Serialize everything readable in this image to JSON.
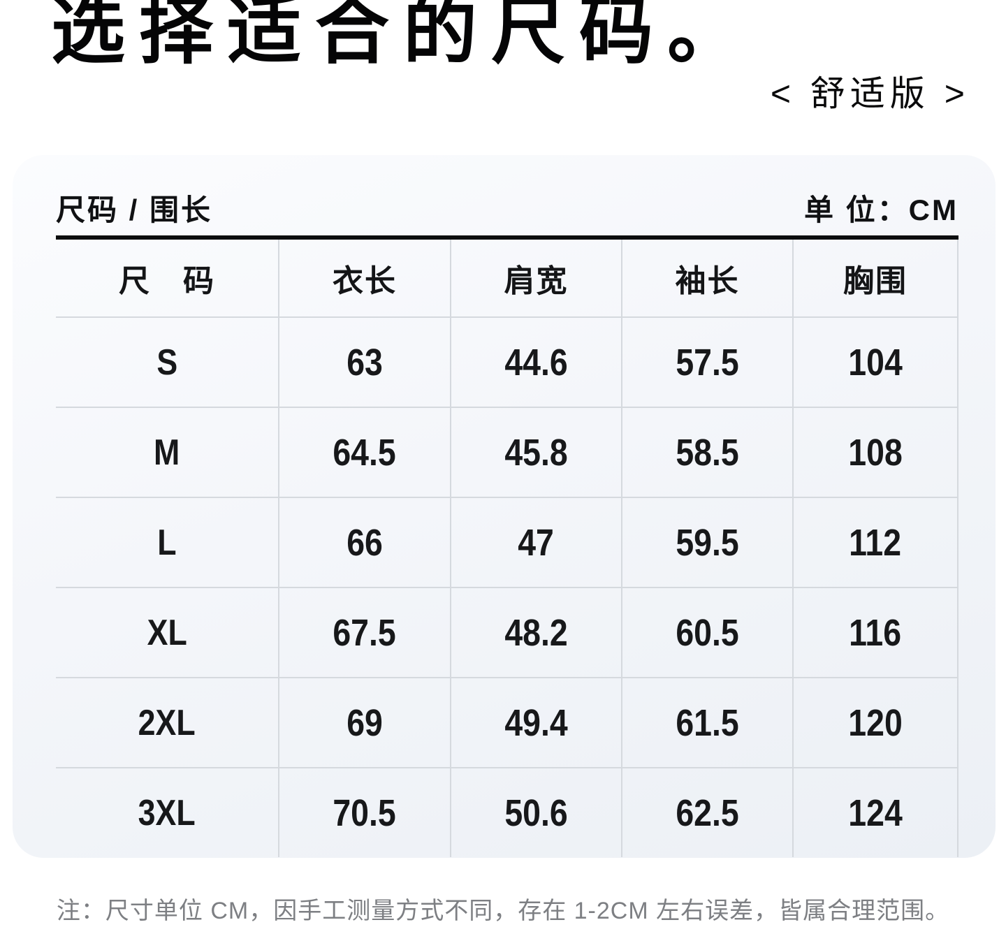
{
  "header": {
    "title": "选择适合的尺码。",
    "version_tag": "< 舒适版 >"
  },
  "card": {
    "subtitle": "尺码 / 围长",
    "unit_label": "单 位：CM"
  },
  "chart_data": {
    "type": "table",
    "title": "选择适合的尺码。",
    "subtitle": "尺码 / 围长",
    "unit": "CM",
    "columns": [
      "尺　码",
      "衣长",
      "肩宽",
      "袖长",
      "胸围"
    ],
    "rows": [
      {
        "size": "S",
        "cells": [
          "63",
          "44.6",
          "57.5",
          "104"
        ]
      },
      {
        "size": "M",
        "cells": [
          "64.5",
          "45.8",
          "58.5",
          "108"
        ]
      },
      {
        "size": "L",
        "cells": [
          "66",
          "47",
          "59.5",
          "112"
        ]
      },
      {
        "size": "XL",
        "cells": [
          "67.5",
          "48.2",
          "60.5",
          "116"
        ]
      },
      {
        "size": "2XL",
        "cells": [
          "69",
          "49.4",
          "61.5",
          "120"
        ]
      },
      {
        "size": "3XL",
        "cells": [
          "70.5",
          "50.6",
          "62.5",
          "124"
        ]
      }
    ]
  },
  "footer": {
    "note": "注：尺寸单位 CM，因手工测量方式不同，存在 1-2CM 左右误差，皆属合理范围。"
  },
  "colors": {
    "title_text": "#050506",
    "body_text": "#17181a",
    "thick_rule": "#0c0d0e",
    "divider": "#d5d9de",
    "note_text": "#7d7f83",
    "card_bg_top": "#fbfcfe",
    "card_bg_bottom": "#ecf0f5",
    "page_bg": "#ffffff"
  }
}
